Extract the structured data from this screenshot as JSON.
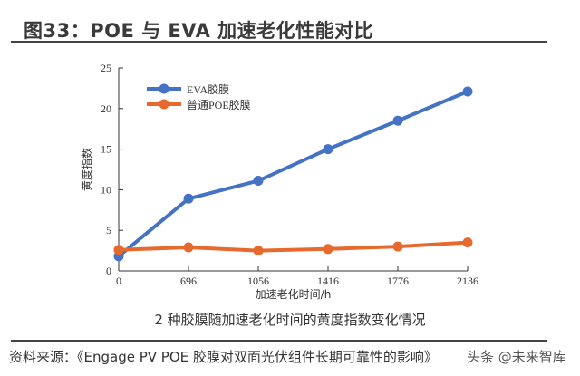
{
  "header": {
    "title": "图33：POE 与 EVA 加速老化性能对比"
  },
  "caption": "2 种胶膜随加速老化时间的黄度指数变化情况",
  "source": "资料来源：《Engage PV POE  胶膜对双面光伏组件长期可靠性的影响》",
  "watermark": "头条 @未来智库",
  "chart_data": {
    "type": "line",
    "categories": [
      "0",
      "696",
      "1056",
      "1416",
      "1776",
      "2136"
    ],
    "xlabel": "加速老化时间/h",
    "ylabel": "黄度指数",
    "ylim": [
      0,
      25
    ],
    "yticks": [
      0,
      5,
      10,
      15,
      20,
      25
    ],
    "grid": false,
    "legend": "top-left",
    "series": [
      {
        "name": "EVA胶膜",
        "color": "#4472c4",
        "values": [
          1.8,
          8.9,
          11.1,
          15.0,
          18.5,
          22.1
        ]
      },
      {
        "name": "普通POE胶膜",
        "color": "#e8692e",
        "values": [
          2.6,
          2.9,
          2.5,
          2.7,
          3.0,
          3.5
        ]
      }
    ]
  }
}
